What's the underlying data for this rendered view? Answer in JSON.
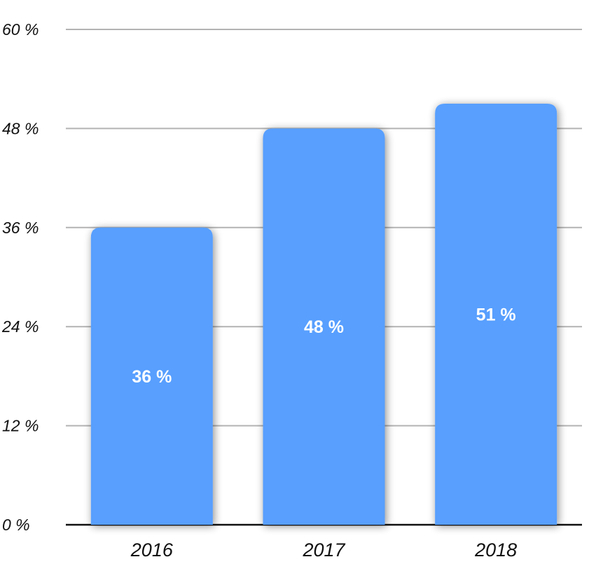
{
  "chart_data": {
    "type": "bar",
    "categories": [
      "2016",
      "2017",
      "2018"
    ],
    "values": [
      36,
      48,
      51
    ],
    "value_labels": [
      "36 %",
      "48 %",
      "51 %"
    ],
    "ylim": [
      0,
      60
    ],
    "yticks": [
      0,
      12,
      24,
      36,
      48,
      60
    ],
    "ytick_labels": [
      "0 %",
      "12 %",
      "24 %",
      "36 %",
      "48 %",
      "60 %"
    ],
    "grid": true,
    "legend": "none",
    "bar_color": "#589ffe"
  }
}
